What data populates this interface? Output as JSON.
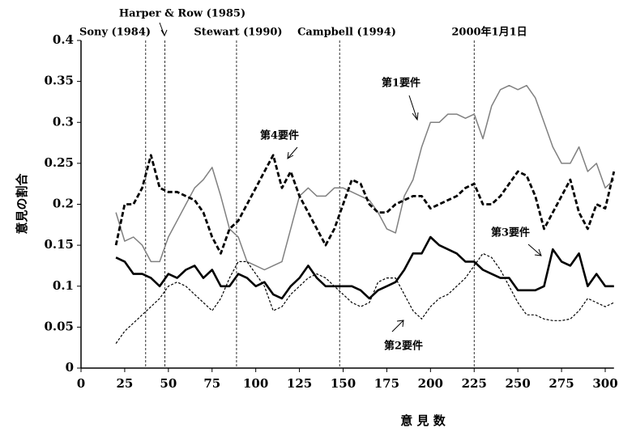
{
  "chart_data": {
    "type": "line",
    "x_label": "意 見 数",
    "y_label": "意見の割合",
    "x": [
      20,
      25,
      30,
      35,
      40,
      45,
      50,
      55,
      60,
      65,
      70,
      75,
      80,
      85,
      90,
      95,
      100,
      105,
      110,
      115,
      120,
      125,
      130,
      135,
      140,
      145,
      150,
      155,
      160,
      165,
      170,
      175,
      180,
      185,
      190,
      195,
      200,
      205,
      210,
      215,
      220,
      225,
      230,
      235,
      240,
      245,
      250,
      255,
      260,
      265,
      270,
      275,
      280,
      285,
      290,
      295,
      300,
      305
    ],
    "series": [
      {
        "name": "第1要件",
        "color": "#808080",
        "style": "thin",
        "values": [
          0.19,
          0.155,
          0.16,
          0.15,
          0.13,
          0.13,
          0.16,
          0.18,
          0.2,
          0.22,
          0.23,
          0.245,
          0.21,
          0.17,
          0.16,
          0.13,
          0.125,
          0.12,
          0.125,
          0.13,
          0.17,
          0.21,
          0.22,
          0.21,
          0.21,
          0.22,
          0.22,
          0.215,
          0.21,
          0.205,
          0.19,
          0.17,
          0.165,
          0.21,
          0.23,
          0.27,
          0.3,
          0.3,
          0.31,
          0.31,
          0.305,
          0.31,
          0.28,
          0.32,
          0.34,
          0.345,
          0.34,
          0.345,
          0.33,
          0.3,
          0.27,
          0.25,
          0.25,
          0.27,
          0.24,
          0.25,
          0.22,
          0.23
        ]
      },
      {
        "name": "第2要件",
        "color": "#000000",
        "style": "dotted",
        "values": [
          0.03,
          0.045,
          0.055,
          0.065,
          0.075,
          0.085,
          0.1,
          0.105,
          0.1,
          0.09,
          0.08,
          0.07,
          0.085,
          0.11,
          0.13,
          0.13,
          0.115,
          0.1,
          0.07,
          0.075,
          0.09,
          0.1,
          0.11,
          0.115,
          0.11,
          0.1,
          0.09,
          0.08,
          0.075,
          0.08,
          0.105,
          0.11,
          0.11,
          0.09,
          0.07,
          0.06,
          0.075,
          0.085,
          0.09,
          0.1,
          0.11,
          0.125,
          0.14,
          0.135,
          0.12,
          0.1,
          0.08,
          0.065,
          0.065,
          0.06,
          0.058,
          0.058,
          0.06,
          0.07,
          0.085,
          0.08,
          0.075,
          0.08
        ]
      },
      {
        "name": "第3要件",
        "color": "#000000",
        "style": "thick",
        "values": [
          0.135,
          0.13,
          0.115,
          0.115,
          0.11,
          0.1,
          0.115,
          0.11,
          0.12,
          0.125,
          0.11,
          0.12,
          0.1,
          0.1,
          0.115,
          0.11,
          0.1,
          0.105,
          0.09,
          0.085,
          0.1,
          0.11,
          0.125,
          0.11,
          0.1,
          0.1,
          0.1,
          0.1,
          0.095,
          0.085,
          0.095,
          0.1,
          0.105,
          0.12,
          0.14,
          0.14,
          0.16,
          0.15,
          0.145,
          0.14,
          0.13,
          0.13,
          0.12,
          0.115,
          0.11,
          0.11,
          0.095,
          0.095,
          0.095,
          0.1,
          0.145,
          0.13,
          0.125,
          0.14,
          0.1,
          0.115,
          0.1,
          0.1
        ]
      },
      {
        "name": "第4要件",
        "color": "#000000",
        "style": "dashed",
        "values": [
          0.15,
          0.2,
          0.2,
          0.22,
          0.26,
          0.22,
          0.215,
          0.215,
          0.21,
          0.205,
          0.19,
          0.16,
          0.14,
          0.17,
          0.18,
          0.2,
          0.22,
          0.24,
          0.26,
          0.22,
          0.24,
          0.21,
          0.19,
          0.17,
          0.15,
          0.17,
          0.2,
          0.23,
          0.225,
          0.2,
          0.19,
          0.19,
          0.2,
          0.205,
          0.21,
          0.21,
          0.195,
          0.2,
          0.205,
          0.21,
          0.22,
          0.225,
          0.2,
          0.2,
          0.21,
          0.225,
          0.24,
          0.235,
          0.21,
          0.17,
          0.19,
          0.21,
          0.23,
          0.19,
          0.17,
          0.2,
          0.195,
          0.24
        ]
      }
    ],
    "annotations": [
      {
        "text": "Sony (1984)",
        "x": 37
      },
      {
        "text": "Harper & Row (1985)",
        "x": 48
      },
      {
        "text": "Stewart (1990)",
        "x": 89
      },
      {
        "text": "Campbell (1994)",
        "x": 148
      },
      {
        "text": "2000年1月1日",
        "x": 225
      }
    ],
    "xlim": [
      0,
      305
    ],
    "xticks": [
      0,
      25,
      50,
      75,
      100,
      125,
      150,
      175,
      200,
      225,
      250,
      275,
      300
    ],
    "ylim": [
      0,
      0.4
    ],
    "yticks": [
      0,
      0.05,
      0.1,
      0.15,
      0.2,
      0.25,
      0.3,
      0.35,
      0.4
    ],
    "grid": false
  }
}
